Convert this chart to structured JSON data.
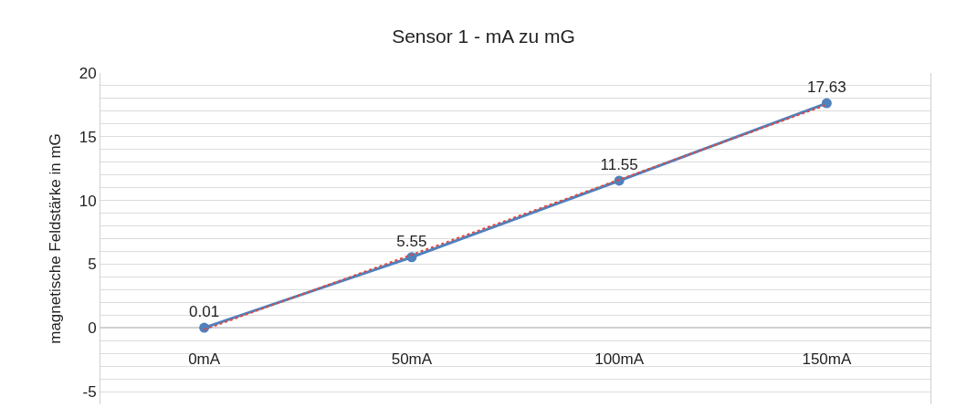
{
  "chart_data": {
    "type": "line",
    "title": "Sensor 1 - mA zu mG",
    "ylabel": "magnetische Feldstärke in mG",
    "categories": [
      "0mA",
      "50mA",
      "100mA",
      "150mA"
    ],
    "series": [
      {
        "color": "#4f81bd",
        "values": [
          0.01,
          5.55,
          11.55,
          17.63
        ],
        "value_labels": [
          "0.01",
          "5.55",
          "11.55",
          "17.63"
        ],
        "marker": "circle",
        "line_style": "solid"
      },
      {
        "color": "#e0493f",
        "values": [
          -0.14,
          5.74,
          11.63,
          17.51
        ],
        "marker": "none",
        "line_style": "dotted"
      }
    ],
    "ylim": [
      -6,
      20
    ],
    "yticks": [
      -5,
      {
        "value": -4,
        "label": null
      },
      {
        "value": -3,
        "label": null
      },
      {
        "value": -2,
        "label": null
      },
      {
        "value": -1,
        "label": null
      },
      0,
      {
        "value": 1,
        "label": null
      },
      {
        "value": 2,
        "label": null
      },
      {
        "value": 3,
        "label": null
      },
      {
        "value": 4,
        "label": null
      },
      5,
      {
        "value": 6,
        "label": null
      },
      {
        "value": 7,
        "label": null
      },
      {
        "value": 8,
        "label": null
      },
      {
        "value": 9,
        "label": null
      },
      10,
      {
        "value": 11,
        "label": null
      },
      {
        "value": 12,
        "label": null
      },
      {
        "value": 13,
        "label": null
      },
      {
        "value": 14,
        "label": null
      },
      15,
      {
        "value": 16,
        "label": null
      },
      {
        "value": 17,
        "label": null
      },
      {
        "value": 18,
        "label": null
      },
      {
        "value": 19,
        "label": null
      },
      20
    ],
    "grid": "y"
  }
}
